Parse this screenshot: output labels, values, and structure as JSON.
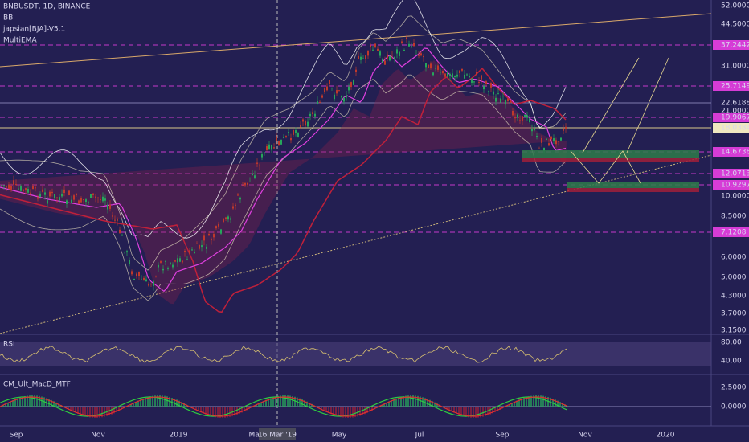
{
  "header": {
    "title": "BNBUSDT, 1D, BINANCE",
    "indicators": [
      "BB",
      "japsian[BJA]-V5.1",
      "MultiEMA"
    ]
  },
  "price_axis": [
    "52.0000",
    "44.5000",
    "37.2442",
    "31.0000",
    "25.7149",
    "22.6188",
    "21.0000",
    "19.9067",
    "18.0384",
    "14.6736",
    "12.0713",
    "10.9297",
    "10.0000",
    "8.5000",
    "7.1208",
    "6.0000",
    "5.0000",
    "4.3000",
    "3.7000",
    "3.1500"
  ],
  "panels": {
    "rsi": {
      "title": "RSI",
      "axis": [
        "80.00",
        "40.00"
      ]
    },
    "macd": {
      "title": "CM_Ult_MacD_MTF",
      "axis": [
        "2.5000",
        "0.0000"
      ]
    }
  },
  "time_axis": [
    "Sep",
    "Nov",
    "2019",
    "Mar",
    "May",
    "Jul",
    "Sep",
    "Nov",
    "2020"
  ],
  "crosshair_label": "16 Mar '19"
}
